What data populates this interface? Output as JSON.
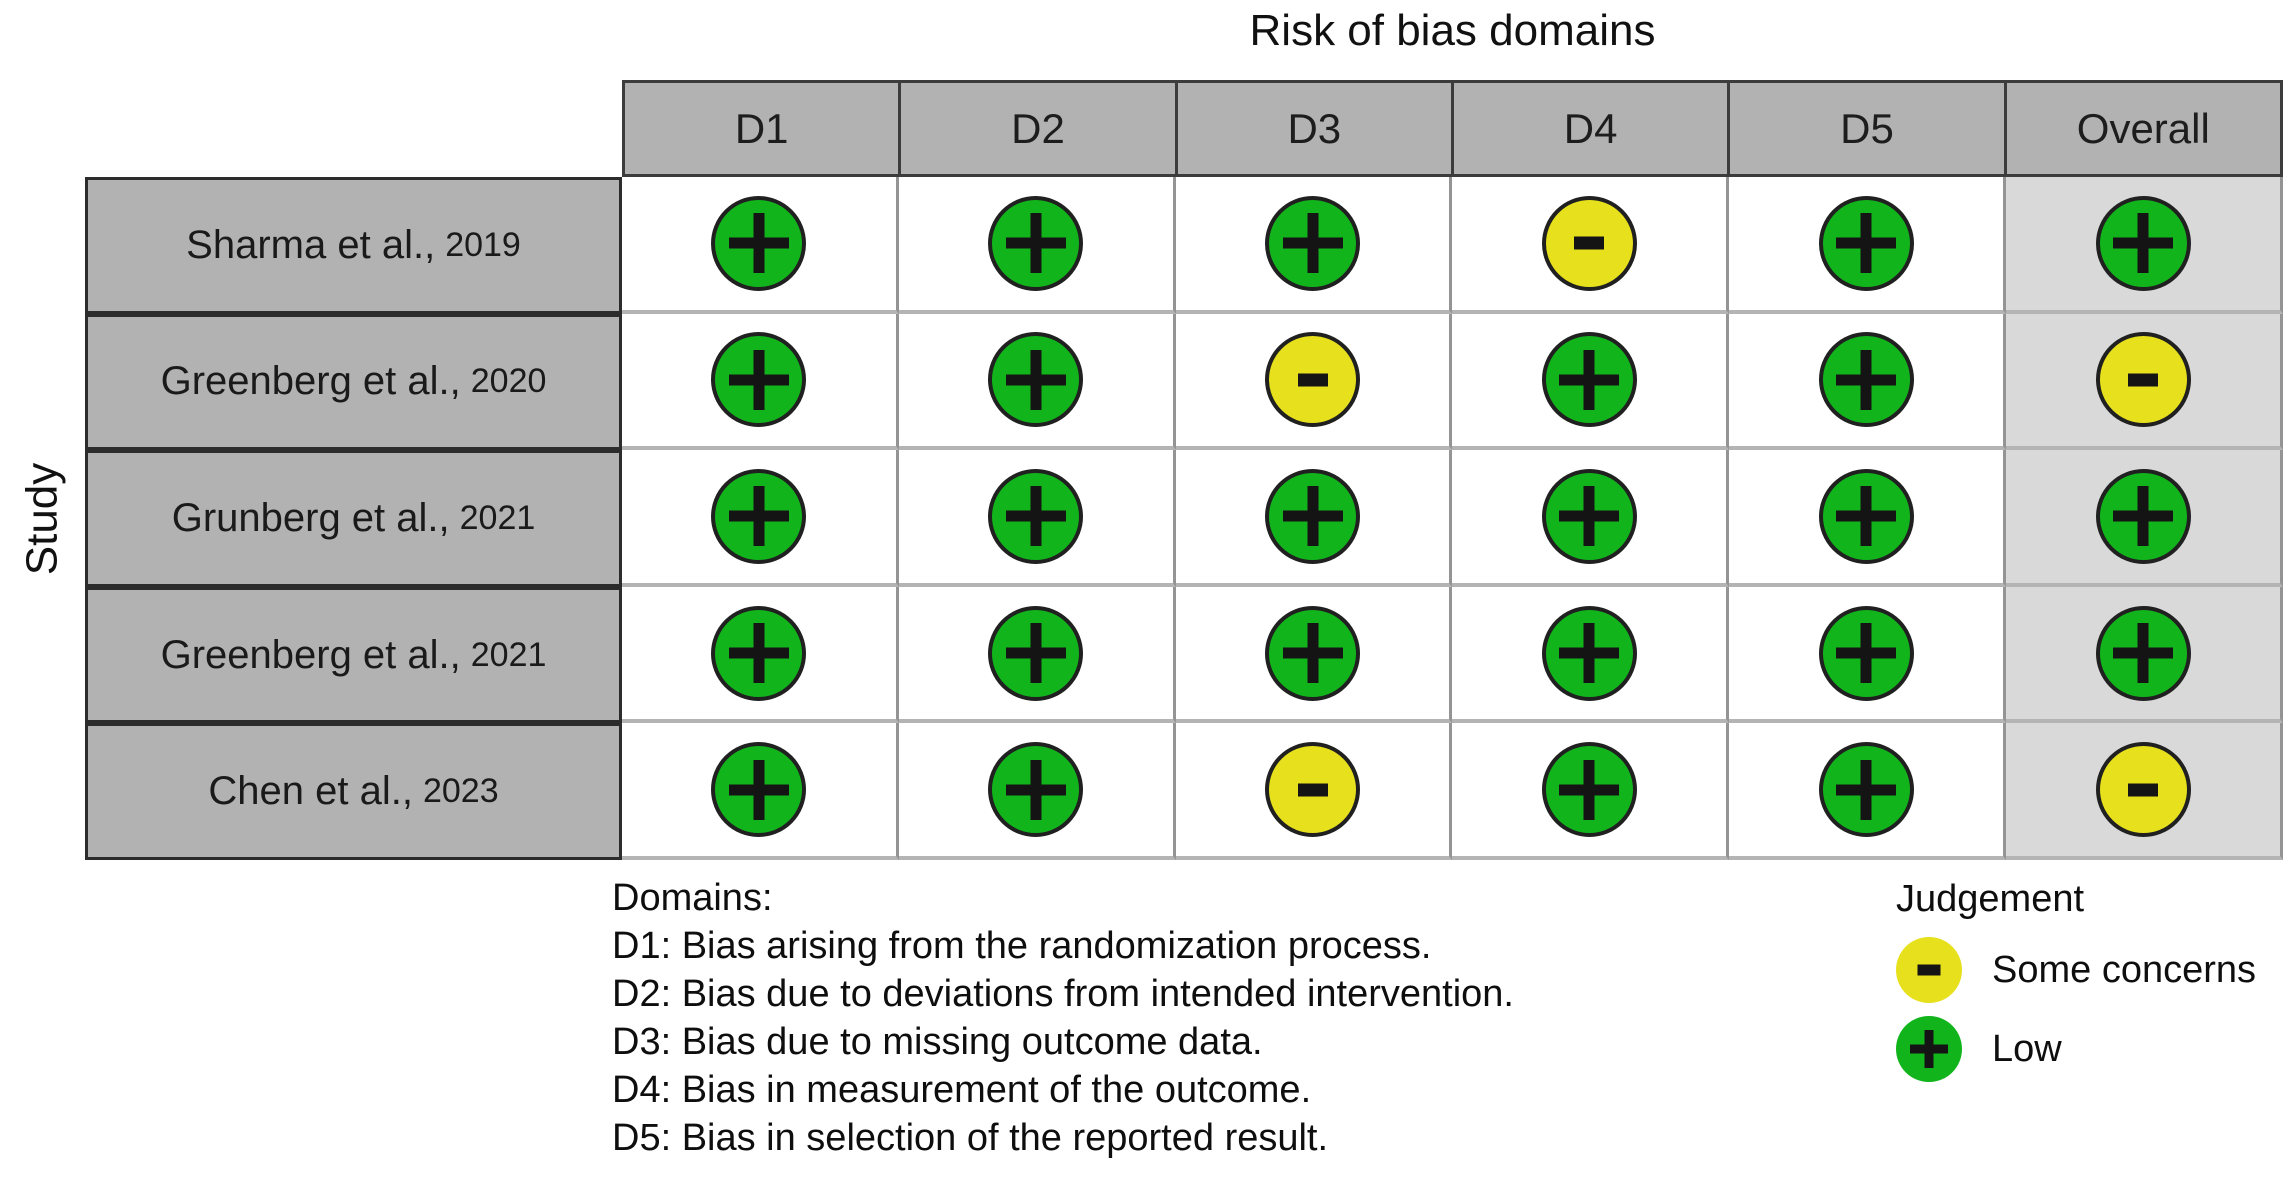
{
  "figure": {
    "title": "Risk of bias domains",
    "y_axis_label": "Study"
  },
  "table": {
    "columns": [
      "D1",
      "D2",
      "D3",
      "D4",
      "D5",
      "Overall"
    ],
    "rows": [
      {
        "study": "Sharma et al.,",
        "year": "2019",
        "judgements": [
          "low",
          "low",
          "low",
          "some",
          "low",
          "low"
        ]
      },
      {
        "study": "Greenberg et al.,",
        "year": "2020",
        "judgements": [
          "low",
          "low",
          "some",
          "low",
          "low",
          "some"
        ]
      },
      {
        "study": "Grunberg et al.,",
        "year": "2021",
        "judgements": [
          "low",
          "low",
          "low",
          "low",
          "low",
          "low"
        ]
      },
      {
        "study": "Greenberg et al.,",
        "year": "2021",
        "judgements": [
          "low",
          "low",
          "low",
          "low",
          "low",
          "low"
        ]
      },
      {
        "study": "Chen et al.,",
        "year": "2023",
        "judgements": [
          "low",
          "low",
          "some",
          "low",
          "low",
          "some"
        ]
      }
    ]
  },
  "domains_legend": {
    "heading": "Domains:",
    "lines": [
      "D1: Bias arising from the randomization process.",
      "D2: Bias due to deviations from intended intervention.",
      "D3: Bias due to missing outcome data.",
      "D4: Bias in measurement of the outcome.",
      "D5: Bias in selection of the reported result."
    ]
  },
  "judgement_legend": {
    "title": "Judgement",
    "items": [
      {
        "key": "some",
        "symbol": "-",
        "label": "Some concerns",
        "color": "#e7e01d"
      },
      {
        "key": "low",
        "symbol": "+",
        "label": "Low",
        "color": "#12b41c"
      }
    ]
  },
  "colors": {
    "low": "#12b41c",
    "some_concerns": "#e7e01d",
    "header_bg": "#b2b2b2",
    "overall_col_bg": "#d9d9d9",
    "dark_border": "#3c3c3c"
  },
  "chart_data": {
    "type": "table",
    "title": "Risk of bias domains",
    "x_categories": [
      "D1",
      "D2",
      "D3",
      "D4",
      "D5",
      "Overall"
    ],
    "y_categories": [
      "Sharma et al., 2019",
      "Greenberg et al., 2020",
      "Grunberg et al., 2021",
      "Greenberg et al., 2021",
      "Chen et al., 2023"
    ],
    "ylabel": "Study",
    "values": [
      [
        "Low",
        "Low",
        "Low",
        "Some concerns",
        "Low",
        "Low"
      ],
      [
        "Low",
        "Low",
        "Some concerns",
        "Low",
        "Low",
        "Some concerns"
      ],
      [
        "Low",
        "Low",
        "Low",
        "Low",
        "Low",
        "Low"
      ],
      [
        "Low",
        "Low",
        "Low",
        "Low",
        "Low",
        "Low"
      ],
      [
        "Low",
        "Low",
        "Some concerns",
        "Low",
        "Low",
        "Some concerns"
      ]
    ],
    "legend": {
      "Low": "+",
      "Some concerns": "-"
    },
    "domain_definitions": {
      "D1": "Bias arising from the randomization process.",
      "D2": "Bias due to deviations from intended intervention.",
      "D3": "Bias due to missing outcome data.",
      "D4": "Bias in measurement of the outcome.",
      "D5": "Bias in selection of the reported result."
    }
  }
}
